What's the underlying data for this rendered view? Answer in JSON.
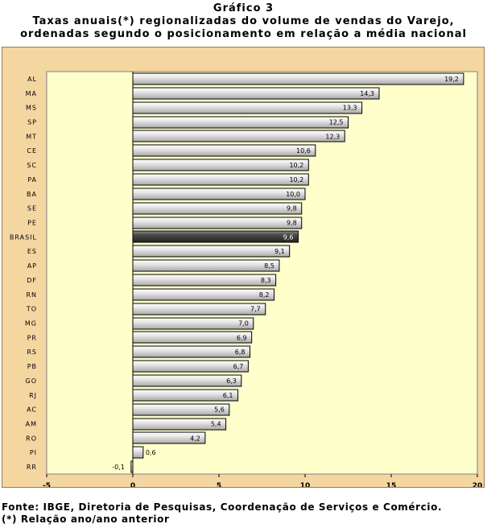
{
  "header": {
    "title": "Gráfico 3",
    "subtitle_line1": "Taxas anuais(*) regionalizadas  do volume de vendas do Varejo,",
    "subtitle_line2": "ordenadas segundo o posicionamento em relação a média nacional"
  },
  "footer": {
    "source": "Fonte: IBGE, Diretoria de Pesquisas, Coordenação de Serviços e Comércio.",
    "note": "(*) Relação ano/ano anterior"
  },
  "colors": {
    "frame_background": "#f4d6a1",
    "plot_background": "#ffffcc",
    "bar_light": "#e8e8e8",
    "bar_mid": "#a9a9a9",
    "bar_highlight": "#4a4a4a",
    "zero_line": "#000000"
  },
  "chart_data": {
    "type": "bar",
    "orientation": "horizontal",
    "categories": [
      "AL",
      "MA",
      "MS",
      "SP",
      "MT",
      "CE",
      "SC",
      "PA",
      "BA",
      "SE",
      "PE",
      "BRASIL",
      "ES",
      "AP",
      "DF",
      "RN",
      "TO",
      "MG",
      "PR",
      "RS",
      "PB",
      "GO",
      "RJ",
      "AC",
      "AM",
      "RO",
      "PI",
      "RR"
    ],
    "values": [
      19.2,
      14.3,
      13.3,
      12.5,
      12.3,
      10.6,
      10.2,
      10.2,
      10.0,
      9.8,
      9.8,
      9.6,
      9.1,
      8.5,
      8.3,
      8.2,
      7.7,
      7.0,
      6.9,
      6.8,
      6.7,
      6.3,
      6.1,
      5.6,
      5.4,
      4.2,
      0.6,
      -0.1
    ],
    "value_labels": [
      "19,2",
      "14,3",
      "13,3",
      "12,5",
      "12,3",
      "10,6",
      "10,2",
      "10,2",
      "10,0",
      "9,8",
      "9,8",
      "9,6",
      "9,1",
      "8,5",
      "8,3",
      "8,2",
      "7,7",
      "7,0",
      "6,9",
      "6,8",
      "6,7",
      "6,3",
      "6,1",
      "5,6",
      "5,4",
      "4,2",
      "0,6",
      "-0,1"
    ],
    "highlight_category": "BRASIL",
    "xlim": [
      -5,
      20
    ],
    "xticks": [
      -5,
      0,
      5,
      10,
      15,
      20
    ],
    "xtick_labels": [
      "-5",
      "0",
      "5",
      "10",
      "15",
      "20"
    ],
    "grid": false,
    "legend": "none"
  }
}
